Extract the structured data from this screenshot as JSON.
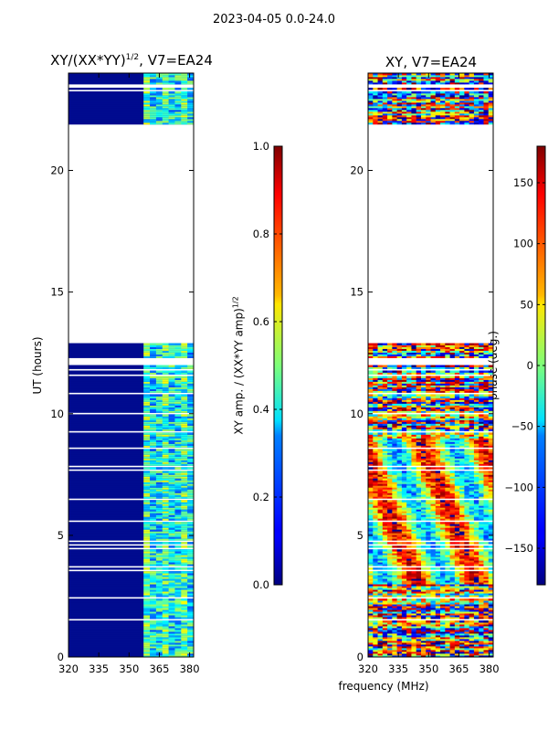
{
  "chart_data": {
    "type": "heatmap",
    "suptitle": "2023-04-05 0.0-24.0",
    "xlabel": "frequency (MHz)",
    "panels": [
      {
        "id": "amp",
        "title": "XY/(XX*YY)",
        "title_sup": "1/2",
        "title_suffix": ", V7=EA24",
        "ylabel": "UT (hours)",
        "xlim": [
          320,
          382
        ],
        "ylim": [
          0,
          24
        ],
        "xticks": [
          320,
          335,
          350,
          365,
          380
        ],
        "yticks": [
          0,
          5,
          10,
          15,
          20
        ],
        "data_gaps_hours": [
          [
            12.85,
            21.8
          ]
        ],
        "colorbar": {
          "label": "XY amp. / (XX*YY amp)",
          "label_sup": "1/2",
          "range": [
            0.0,
            1.0
          ],
          "ticks": [
            "0.0",
            "0.2",
            "0.4",
            "0.6",
            "0.8",
            "1.0"
          ],
          "tick_values": [
            0.0,
            0.2,
            0.4,
            0.6,
            0.8,
            1.0
          ],
          "colormap": "jet"
        }
      },
      {
        "id": "phase",
        "title": "XY, V7=EA24",
        "xlim": [
          320,
          382
        ],
        "ylim": [
          0,
          24
        ],
        "xticks": [
          320,
          335,
          350,
          365,
          380
        ],
        "yticks": [
          0,
          5,
          10,
          15,
          20
        ],
        "data_gaps_hours": [
          [
            12.85,
            21.8
          ]
        ],
        "colorbar": {
          "label": "phase (deg.)",
          "range": [
            -180,
            180
          ],
          "ticks": [
            "−150",
            "−100",
            "−50",
            "0",
            "50",
            "100",
            "150"
          ],
          "tick_values": [
            -150,
            -100,
            -50,
            0,
            50,
            100,
            150
          ],
          "colormap": "jet"
        }
      }
    ]
  }
}
